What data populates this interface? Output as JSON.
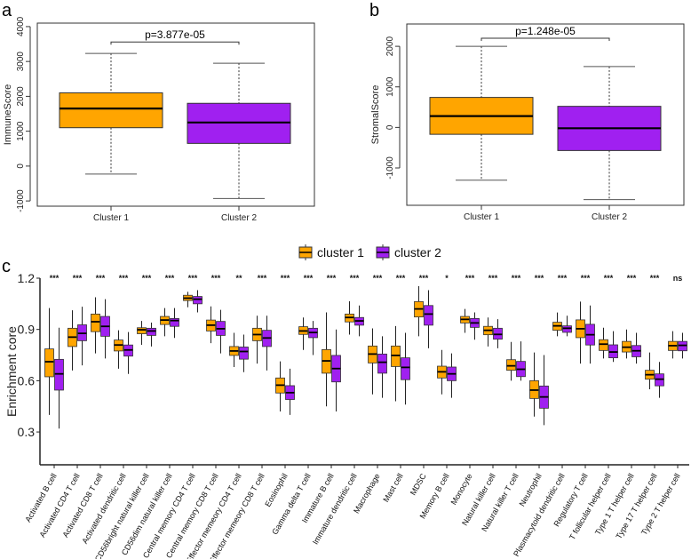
{
  "colors": {
    "cluster1": "#FFA500",
    "cluster2": "#A020F0"
  },
  "chart_data": [
    {
      "type": "box",
      "panel_label": "a",
      "ylabel": "ImmuneScore",
      "ylim": [
        -1150,
        4100
      ],
      "yticks": [
        -1000,
        0,
        1000,
        2000,
        3000,
        4000
      ],
      "categories": [
        "Cluster 1",
        "Cluster 2"
      ],
      "annotation": "p=3.877e-05",
      "annotation_y": 3560,
      "boxes": [
        {
          "whisker_low": -230,
          "q1": 1100,
          "median": 1650,
          "q3": 2100,
          "whisker_high": 3230
        },
        {
          "whisker_low": -930,
          "q1": 650,
          "median": 1250,
          "q3": 1800,
          "whisker_high": 2950
        }
      ]
    },
    {
      "type": "box",
      "panel_label": "b",
      "ylabel": "StromalScore",
      "ylim": [
        -1920,
        2550
      ],
      "yticks": [
        -1000,
        0,
        1000,
        2000
      ],
      "categories": [
        "Cluster 1",
        "Cluster 2"
      ],
      "annotation": "p=1.248e-05",
      "annotation_y": 2200,
      "boxes": [
        {
          "whisker_low": -1300,
          "q1": -170,
          "median": 280,
          "q3": 740,
          "whisker_high": 2000
        },
        {
          "whisker_low": -1780,
          "q1": -570,
          "median": -20,
          "q3": 520,
          "whisker_high": 1500
        }
      ]
    },
    {
      "type": "grouped-box",
      "panel_label": "c",
      "ylabel": "Enrichment core",
      "ylim": [
        0.11,
        1.2
      ],
      "yticks": [
        0.3,
        0.6,
        0.9,
        1.2
      ],
      "ytick_labels": [
        "0.3",
        "0.6",
        "0.9",
        "1.2"
      ],
      "legend": {
        "position": "top",
        "entries": [
          "cluster 1",
          "cluster 2"
        ]
      },
      "categories": [
        "Activated B cell",
        "Activated CD4 T cell",
        "Activated CD8 T cell",
        "Activated dendritic cell",
        "CD56bright natural killer cell",
        "CD56dim natural killer cell",
        "Central memory CD4 T cell",
        "Central memory CD8 T cell",
        "Effector memeory CD4 T cell",
        "Effector memeory CD8 T cell",
        "Eosinophil",
        "Gamma delta T cell",
        "Immature  B cell",
        "Immature dendritic cell",
        "Macrophage",
        "Mast cell",
        "MDSC",
        "Memory B cell",
        "Monocyte",
        "Natural killer cell",
        "Natural killer T cell",
        "Neutrophil",
        "Plasmacytoid dendritic cell",
        "Regulatory T cell",
        "T follicular helper cell",
        "Type 1 T helper cell",
        "Type 17 T helper cell",
        "Type 2 T helper cell"
      ],
      "significance": [
        "***",
        "***",
        "***",
        "***",
        "***",
        "***",
        "***",
        "***",
        "**",
        "***",
        "***",
        "***",
        "***",
        "***",
        "***",
        "***",
        "***",
        "*",
        "***",
        "***",
        "***",
        "***",
        "***",
        "***",
        "***",
        "***",
        "***",
        "ns"
      ],
      "series": [
        {
          "name": "cluster 1",
          "boxes": [
            [
              0.4,
              0.623,
              0.711,
              0.786,
              1.025
            ],
            [
              0.66,
              0.8,
              0.855,
              0.907,
              1.012
            ],
            [
              0.76,
              0.887,
              0.945,
              0.99,
              1.088
            ],
            [
              0.67,
              0.774,
              0.809,
              0.838,
              0.895
            ],
            [
              0.81,
              0.875,
              0.898,
              0.91,
              0.95
            ],
            [
              0.86,
              0.929,
              0.955,
              0.976,
              1.025
            ],
            [
              1.03,
              1.069,
              1.083,
              1.1,
              1.12
            ],
            [
              0.82,
              0.891,
              0.925,
              0.955,
              1.035
            ],
            [
              0.68,
              0.748,
              0.774,
              0.8,
              0.88
            ],
            [
              0.7,
              0.834,
              0.87,
              0.907,
              0.98
            ],
            [
              0.42,
              0.528,
              0.574,
              0.616,
              0.713
            ],
            [
              0.78,
              0.871,
              0.891,
              0.916,
              0.97
            ],
            [
              0.45,
              0.644,
              0.716,
              0.782,
              1.0
            ],
            [
              0.87,
              0.944,
              0.97,
              0.99,
              1.065
            ],
            [
              0.52,
              0.704,
              0.756,
              0.803,
              0.906
            ],
            [
              0.48,
              0.683,
              0.748,
              0.803,
              0.92
            ],
            [
              0.86,
              0.973,
              1.02,
              1.063,
              1.153
            ],
            [
              0.52,
              0.616,
              0.652,
              0.685,
              0.78
            ],
            [
              0.88,
              0.938,
              0.959,
              0.976,
              1.02
            ],
            [
              0.8,
              0.869,
              0.895,
              0.918,
              0.97
            ],
            [
              0.6,
              0.661,
              0.687,
              0.723,
              0.827
            ],
            [
              0.39,
              0.496,
              0.545,
              0.6,
              0.765
            ],
            [
              0.86,
              0.895,
              0.921,
              0.942,
              0.999
            ],
            [
              0.7,
              0.852,
              0.904,
              0.956,
              1.063
            ],
            [
              0.73,
              0.777,
              0.814,
              0.84,
              0.91
            ],
            [
              0.73,
              0.768,
              0.796,
              0.83,
              0.9
            ],
            [
              0.55,
              0.609,
              0.635,
              0.661,
              0.765
            ],
            [
              0.73,
              0.777,
              0.805,
              0.83,
              0.89
            ]
          ]
        },
        {
          "name": "cluster 2",
          "boxes": [
            [
              0.32,
              0.545,
              0.64,
              0.725,
              0.91
            ],
            [
              0.69,
              0.834,
              0.877,
              0.927,
              1.033
            ],
            [
              0.73,
              0.86,
              0.918,
              0.976,
              1.077
            ],
            [
              0.64,
              0.744,
              0.78,
              0.809,
              0.885
            ],
            [
              0.8,
              0.865,
              0.891,
              0.907,
              0.94
            ],
            [
              0.85,
              0.918,
              0.952,
              0.964,
              1.025
            ],
            [
              1.0,
              1.05,
              1.077,
              1.093,
              1.13
            ],
            [
              0.76,
              0.865,
              0.904,
              0.947,
              1.015
            ],
            [
              0.65,
              0.726,
              0.771,
              0.797,
              0.87
            ],
            [
              0.66,
              0.8,
              0.85,
              0.895,
              0.98
            ],
            [
              0.4,
              0.49,
              0.53,
              0.571,
              0.67
            ],
            [
              0.75,
              0.852,
              0.882,
              0.907,
              0.95
            ],
            [
              0.42,
              0.593,
              0.671,
              0.748,
              0.9
            ],
            [
              0.86,
              0.925,
              0.95,
              0.97,
              1.04
            ],
            [
              0.5,
              0.644,
              0.708,
              0.756,
              0.86
            ],
            [
              0.46,
              0.606,
              0.678,
              0.734,
              0.88
            ],
            [
              0.79,
              0.925,
              0.99,
              1.04,
              1.13
            ],
            [
              0.5,
              0.6,
              0.64,
              0.68,
              0.76
            ],
            [
              0.84,
              0.912,
              0.938,
              0.964,
              1.0
            ],
            [
              0.79,
              0.843,
              0.871,
              0.907,
              0.96
            ],
            [
              0.6,
              0.624,
              0.667,
              0.713,
              0.83
            ],
            [
              0.34,
              0.439,
              0.505,
              0.569,
              0.75
            ],
            [
              0.86,
              0.883,
              0.907,
              0.921,
              0.98
            ],
            [
              0.7,
              0.809,
              0.869,
              0.93,
              1.04
            ],
            [
              0.71,
              0.734,
              0.768,
              0.81,
              0.89
            ],
            [
              0.7,
              0.74,
              0.775,
              0.806,
              0.88
            ],
            [
              0.5,
              0.57,
              0.609,
              0.64,
              0.71
            ],
            [
              0.73,
              0.775,
              0.807,
              0.83,
              0.88
            ]
          ]
        }
      ]
    }
  ]
}
